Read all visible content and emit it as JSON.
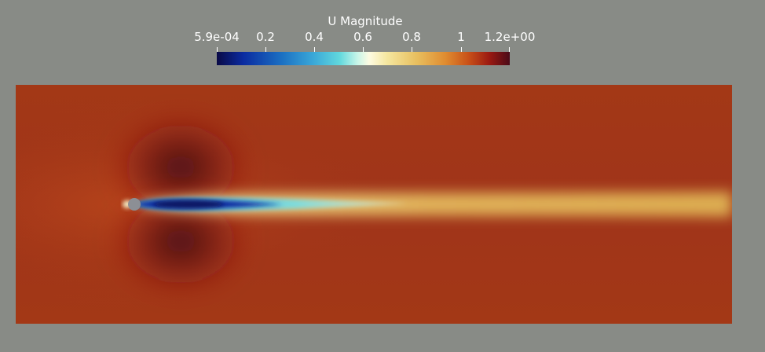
{
  "colorbar": {
    "title": "U Magnitude",
    "ticks": [
      "5.9e-04",
      "0.2",
      "0.4",
      "0.6",
      "0.8",
      "1",
      "1.2e+00"
    ],
    "range": [
      0.00059,
      1.2
    ],
    "colormap": [
      "#0a0a46",
      "#0b2ba0",
      "#3aa8d8",
      "#fdfbe2",
      "#e8c060",
      "#c85018",
      "#4a0a18"
    ]
  },
  "scene": {
    "background": "#888b86",
    "field_color": "#a33816",
    "obstacle_color": "#8c8f95",
    "obstacle": "cylinder"
  }
}
